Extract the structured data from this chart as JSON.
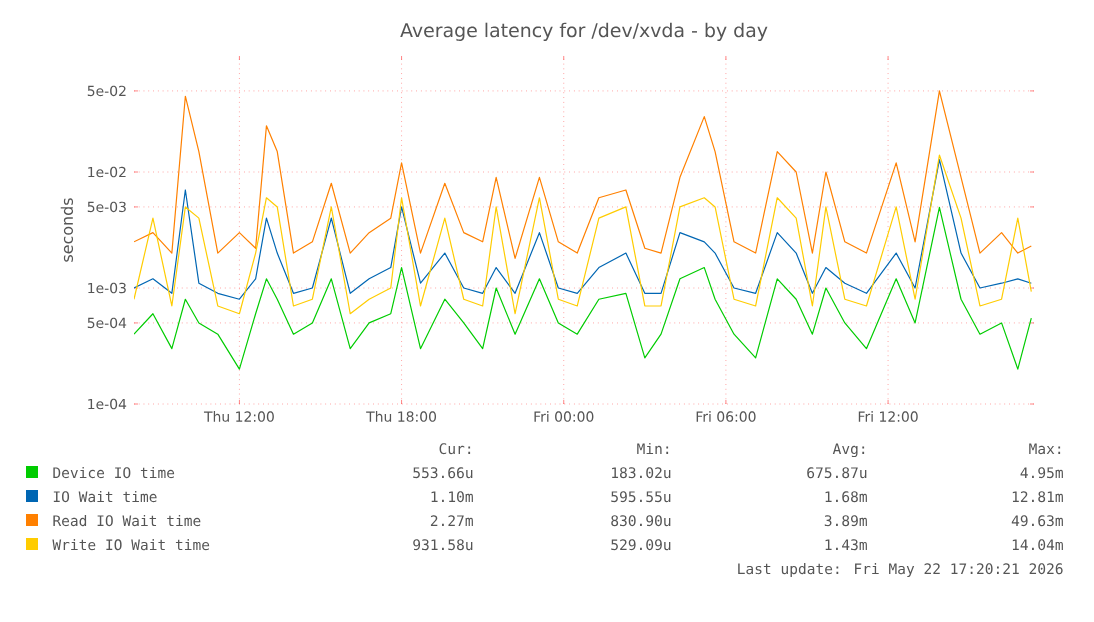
{
  "chart_data": {
    "type": "line",
    "title": "Average latency for /dev/xvda - by day",
    "ylabel": "seconds",
    "log": true,
    "grid": true,
    "legend": "bottom",
    "marker": "none",
    "line_style": "solid",
    "xlim": [
      "2026-05-21T08:06",
      "2026-05-22T17:24"
    ],
    "ylim": [
      0.0001,
      0.1
    ],
    "xticks": [
      {
        "value": "2026-05-21T12:00",
        "label": "Thu 12:00"
      },
      {
        "value": "2026-05-21T18:00",
        "label": "Thu 18:00"
      },
      {
        "value": "2026-05-22T00:00",
        "label": "Fri 00:00"
      },
      {
        "value": "2026-05-22T06:00",
        "label": "Fri 06:00"
      },
      {
        "value": "2026-05-22T12:00",
        "label": "Fri 12:00"
      }
    ],
    "yticks": [
      {
        "value": 0.0001,
        "label": "1e-04"
      },
      {
        "value": 0.0005,
        "label": "5e-04"
      },
      {
        "value": 0.001,
        "label": "1e-03"
      },
      {
        "value": 0.005,
        "label": "5e-03"
      },
      {
        "value": 0.01,
        "label": "1e-02"
      },
      {
        "value": 0.05,
        "label": "5e-02"
      }
    ],
    "x": [
      "2026-05-21T08:06",
      "2026-05-21T08:48",
      "2026-05-21T09:30",
      "2026-05-21T10:00",
      "2026-05-21T10:30",
      "2026-05-21T11:12",
      "2026-05-21T12:00",
      "2026-05-21T12:36",
      "2026-05-21T13:00",
      "2026-05-21T13:24",
      "2026-05-21T14:00",
      "2026-05-21T14:42",
      "2026-05-21T15:24",
      "2026-05-21T16:06",
      "2026-05-21T16:48",
      "2026-05-21T17:36",
      "2026-05-21T18:00",
      "2026-05-21T18:42",
      "2026-05-21T19:36",
      "2026-05-21T20:18",
      "2026-05-21T21:00",
      "2026-05-21T21:30",
      "2026-05-21T22:12",
      "2026-05-21T23:06",
      "2026-05-21T23:48",
      "2026-05-22T00:30",
      "2026-05-22T01:18",
      "2026-05-22T02:18",
      "2026-05-22T03:00",
      "2026-05-22T03:36",
      "2026-05-22T04:18",
      "2026-05-22T05:12",
      "2026-05-22T05:36",
      "2026-05-22T06:18",
      "2026-05-22T07:06",
      "2026-05-22T07:54",
      "2026-05-22T08:36",
      "2026-05-22T09:12",
      "2026-05-22T09:42",
      "2026-05-22T10:24",
      "2026-05-22T11:12",
      "2026-05-22T12:18",
      "2026-05-22T13:00",
      "2026-05-22T13:54",
      "2026-05-22T14:42",
      "2026-05-22T15:24",
      "2026-05-22T16:12",
      "2026-05-22T16:48",
      "2026-05-22T17:18"
    ],
    "series": [
      {
        "name": "Device IO time",
        "color": "#00cc00",
        "values": [
          0.0004,
          0.0006,
          0.0003,
          0.0008,
          0.0005,
          0.0004,
          0.0002,
          0.0006,
          0.0012,
          0.0008,
          0.0004,
          0.0005,
          0.0012,
          0.0003,
          0.0005,
          0.0006,
          0.0015,
          0.0003,
          0.0008,
          0.0005,
          0.0003,
          0.001,
          0.0004,
          0.0012,
          0.0005,
          0.0004,
          0.0008,
          0.0009,
          0.00025,
          0.0004,
          0.0012,
          0.0015,
          0.0008,
          0.0004,
          0.00025,
          0.0012,
          0.0008,
          0.0004,
          0.001,
          0.0005,
          0.0003,
          0.0012,
          0.0005,
          0.00495,
          0.0008,
          0.0004,
          0.0005,
          0.0002,
          0.00055
        ]
      },
      {
        "name": "IO Wait time",
        "color": "#0066b3",
        "values": [
          0.001,
          0.0012,
          0.0009,
          0.007,
          0.0011,
          0.0009,
          0.0008,
          0.0012,
          0.004,
          0.002,
          0.0009,
          0.001,
          0.004,
          0.0009,
          0.0012,
          0.0015,
          0.005,
          0.0011,
          0.002,
          0.001,
          0.0009,
          0.0015,
          0.0009,
          0.003,
          0.001,
          0.0009,
          0.0015,
          0.002,
          0.0009,
          0.0009,
          0.003,
          0.0025,
          0.002,
          0.001,
          0.0009,
          0.003,
          0.002,
          0.0009,
          0.0015,
          0.0011,
          0.0009,
          0.002,
          0.001,
          0.0128,
          0.002,
          0.001,
          0.0011,
          0.0012,
          0.0011
        ]
      },
      {
        "name": "Read IO Wait time",
        "color": "#ff8000",
        "values": [
          0.0025,
          0.003,
          0.002,
          0.045,
          0.015,
          0.002,
          0.003,
          0.0022,
          0.025,
          0.015,
          0.002,
          0.0025,
          0.008,
          0.002,
          0.003,
          0.004,
          0.012,
          0.002,
          0.008,
          0.003,
          0.0025,
          0.009,
          0.0018,
          0.009,
          0.0025,
          0.002,
          0.006,
          0.007,
          0.0022,
          0.002,
          0.009,
          0.03,
          0.015,
          0.0025,
          0.002,
          0.015,
          0.01,
          0.002,
          0.01,
          0.0025,
          0.002,
          0.012,
          0.0025,
          0.05,
          0.009,
          0.002,
          0.003,
          0.002,
          0.0023
        ]
      },
      {
        "name": "Write IO Wait time",
        "color": "#ffcc00",
        "values": [
          0.0008,
          0.004,
          0.0007,
          0.005,
          0.004,
          0.0007,
          0.0006,
          0.002,
          0.006,
          0.005,
          0.0007,
          0.0008,
          0.005,
          0.0006,
          0.0008,
          0.001,
          0.006,
          0.0007,
          0.004,
          0.0008,
          0.0007,
          0.005,
          0.0006,
          0.006,
          0.0008,
          0.0007,
          0.004,
          0.005,
          0.0007,
          0.0007,
          0.005,
          0.006,
          0.005,
          0.0008,
          0.0007,
          0.006,
          0.004,
          0.0007,
          0.005,
          0.0008,
          0.0007,
          0.005,
          0.0008,
          0.014,
          0.004,
          0.0007,
          0.0008,
          0.004,
          0.00093
        ]
      }
    ],
    "annotations": [
      "Cur:",
      "Min:",
      "Avg:",
      "Max:",
      "553.66u",
      "183.02u",
      "675.87u",
      "4.95m",
      "1.10m",
      "595.55u",
      "1.68m",
      "12.81m",
      "2.27m",
      "830.90u",
      "3.89m",
      "49.63m",
      "931.58u",
      "529.09u",
      "1.43m",
      "14.04m",
      "Last update: Fri May 22 17:20:21 2026"
    ]
  }
}
